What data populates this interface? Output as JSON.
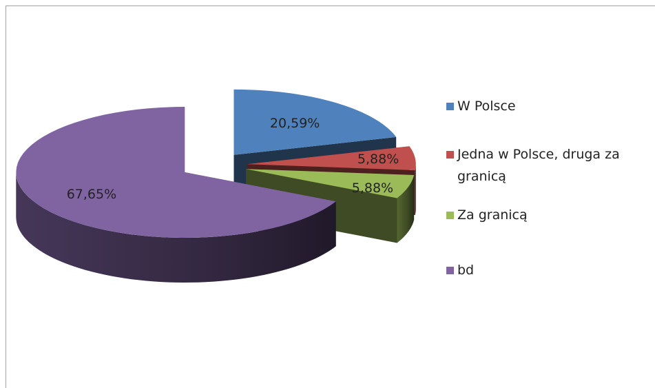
{
  "chart_data": {
    "type": "pie",
    "categories": [
      "W Polsce",
      "Jedna w Polsce, druga za granicą",
      "Za granicą",
      "bd"
    ],
    "values": [
      20.59,
      5.88,
      5.88,
      67.65
    ],
    "value_labels": [
      "20,59%",
      "5,88%",
      "5,88%",
      "67,65%"
    ],
    "colors": [
      "#4f81bd",
      "#c0504d",
      "#9bbb59",
      "#8064a2"
    ],
    "legend": "right"
  }
}
